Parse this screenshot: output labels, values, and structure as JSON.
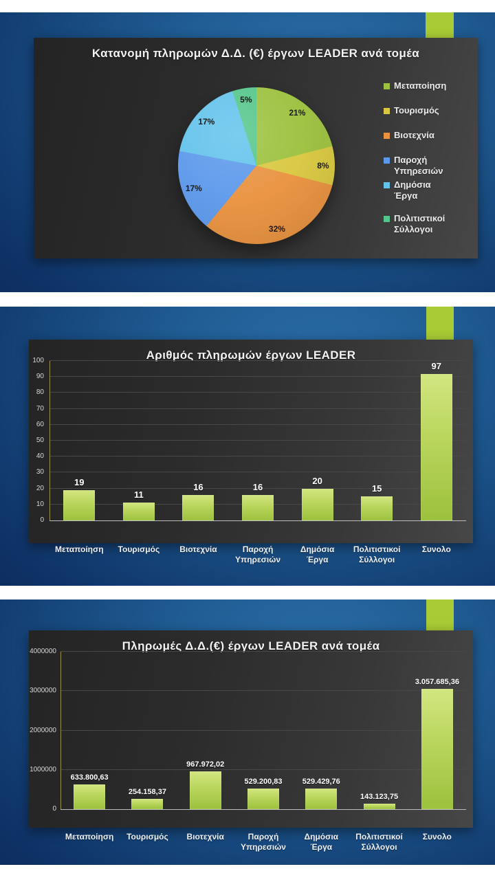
{
  "accent_color": "#a9cb35",
  "bar_color": "#a9cb3a",
  "chart_data": [
    {
      "type": "pie",
      "title": "Κατανομή πληρωμών Δ.Δ. (€) έργων LEADER ανά τομέα",
      "labels": [
        "Μεταποίηση",
        "Τουρισμός",
        "Βιοτεχνία",
        "Παροχή Υπηρεσιών",
        "Δημόσια Έργα",
        "Πολιτιστικοί Σύλλογοι"
      ],
      "values_pct": [
        21,
        8,
        32,
        17,
        17,
        5
      ],
      "slice_labels": [
        "21%",
        "8%",
        "32%",
        "17%",
        "17%",
        "5%"
      ],
      "colors": [
        "#9cc13e",
        "#d9c840",
        "#e9923f",
        "#5d99ea",
        "#63c3eb",
        "#55c68b"
      ],
      "legend_position": "right",
      "start_angle_deg": 0
    },
    {
      "type": "bar",
      "title": "Αριθμός πληρωμών έργων LEADER",
      "categories": [
        "Μεταποίηση",
        "Τουρισμός",
        "Βιοτεχνία",
        "Παροχή Υπηρεσιών",
        "Δημόσια Έργα",
        "Πολιτιστικοί Σύλλογοι",
        "Συνολο"
      ],
      "values": [
        19,
        11,
        16,
        16,
        20,
        15,
        97
      ],
      "value_labels": [
        "19",
        "11",
        "16",
        "16",
        "20",
        "15",
        "97"
      ],
      "ylim": [
        0,
        100
      ],
      "yticks": [
        0,
        10,
        20,
        30,
        40,
        50,
        60,
        70,
        80,
        90,
        100
      ],
      "ytick_labels": [
        "0",
        "10",
        "20",
        "30",
        "40",
        "50",
        "60",
        "70",
        "80",
        "90",
        "100"
      ],
      "grid": true,
      "legend_position": "none"
    },
    {
      "type": "bar",
      "title": "Πληρωμές Δ.Δ.(€) έργων LEADER ανά τομέα",
      "categories": [
        "Μεταποίηση",
        "Τουρισμός",
        "Βιοτεχνία",
        "Παροχή Υπηρεσιών",
        "Δημόσια Έργα",
        "Πολιτιστικοί Σύλλογοι",
        "Συνολο"
      ],
      "values": [
        633800.63,
        254158.37,
        967972.02,
        529200.83,
        529429.76,
        143123.75,
        3057685.36
      ],
      "value_labels": [
        "633.800,63",
        "254.158,37",
        "967.972,02",
        "529.200,83",
        "529.429,76",
        "143.123,75",
        "3.057.685,36"
      ],
      "ylim": [
        0,
        4000000
      ],
      "yticks": [
        0,
        1000000,
        2000000,
        3000000,
        4000000
      ],
      "ytick_labels": [
        "0",
        "1000000",
        "2000000",
        "3000000",
        "4000000"
      ],
      "grid": true,
      "legend_position": "none"
    }
  ]
}
